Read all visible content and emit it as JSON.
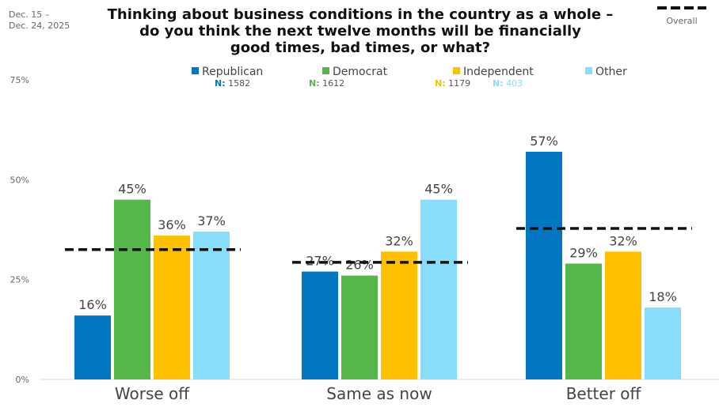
{
  "date_range": "Dec. 15 –\nDec. 24, 2025",
  "overall_legend_label": "Overall",
  "chart_data": {
    "type": "bar",
    "title": "Thinking about business conditions in the country as a whole –\ndo you think the next twelve months will be financially\ngood times, bad times, or what?",
    "xlabel": "",
    "ylabel": "",
    "ylim": [
      0,
      75
    ],
    "yticks": [
      0,
      25,
      50,
      75
    ],
    "ytick_labels": [
      "0%",
      "25%",
      "50%",
      "75%"
    ],
    "grid": false,
    "legend_position": "top-center",
    "categories": [
      "Worse off",
      "Same as now",
      "Better off"
    ],
    "series": [
      {
        "name": "Republican",
        "n_label": "N:",
        "n": "1582",
        "color": "#0077C0",
        "values": [
          16,
          27,
          57
        ],
        "labels": [
          "16%",
          "27%",
          "57%"
        ]
      },
      {
        "name": "Democrat",
        "n_label": "N:",
        "n": "1612",
        "color": "#55B74A",
        "values": [
          45,
          26,
          29
        ],
        "labels": [
          "45%",
          "26%",
          "29%"
        ]
      },
      {
        "name": "Independent",
        "n_label": "N:",
        "n": "1179",
        "color": "#FFC000",
        "values": [
          36,
          32,
          32
        ],
        "labels": [
          "36%",
          "32%",
          "32%"
        ]
      },
      {
        "name": "Other",
        "n_label": "N:",
        "n": "403",
        "color": "#87DDFA",
        "values": [
          37,
          45,
          18
        ],
        "labels": [
          "37%",
          "45%",
          "18%"
        ]
      }
    ],
    "overall": {
      "name": "Overall",
      "style": "dashed",
      "color": "#111111",
      "values": [
        32.5,
        29.3,
        37.8
      ]
    }
  }
}
